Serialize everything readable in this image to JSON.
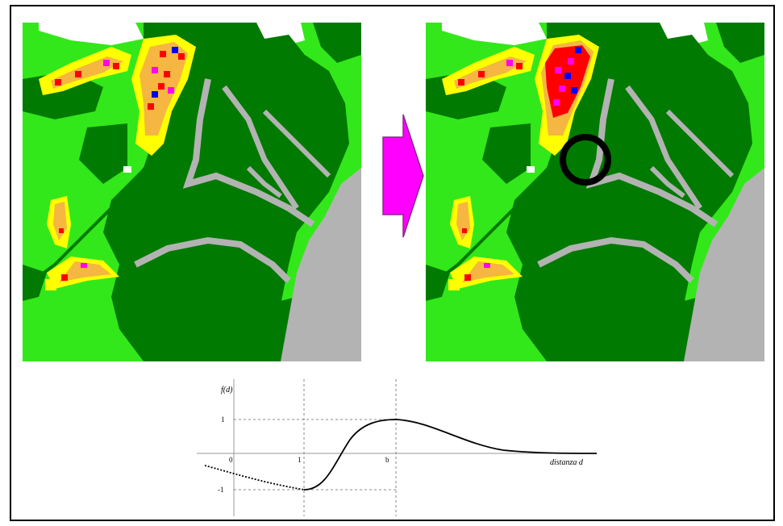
{
  "colors": {
    "light_green": "#33e81a",
    "dark_green": "#007a00",
    "gray": "#b3b3b3",
    "white": "#ffffff",
    "yellow": "#ffff00",
    "orange": "#f5b642",
    "red": "#ff0000",
    "magenta": "#ff00ff",
    "blue": "#0000ff",
    "arrow": "#ff00ff",
    "ring": "#000000"
  },
  "chart_data": {
    "type": "line",
    "ylabel": "f(d)",
    "xlabel": "distanza d",
    "x_tick_labels": {
      "origin": "0",
      "one": "1",
      "b": "b"
    },
    "y_tick_labels": {
      "pos": "1",
      "neg": "-1"
    },
    "curve": "solid rises from (1,-1) to peak (b,1) then decays toward 0; dotted segment for d<1"
  }
}
